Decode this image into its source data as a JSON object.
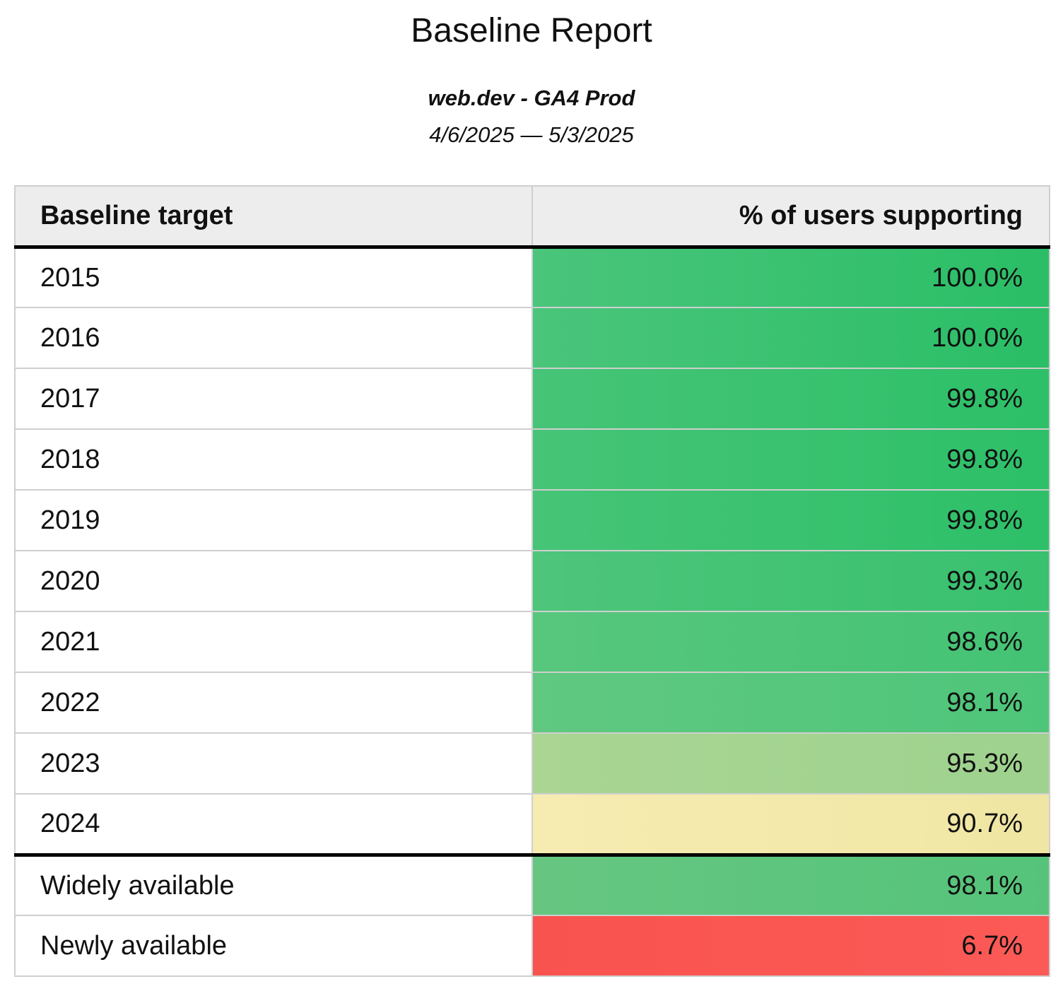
{
  "report": {
    "title": "Baseline Report",
    "subtitle": "web.dev - GA4 Prod",
    "date_range": "4/6/2025 — 5/3/2025"
  },
  "table": {
    "columns": {
      "target": "Baseline target",
      "support": "% of users supporting"
    },
    "header_bg": "#ededed",
    "divider_color": "#cfcfcf",
    "heavy_rule_color": "#000000",
    "rows": [
      {
        "target": "2015",
        "value": "100.0%",
        "color_left": "#4ac57b",
        "color_right": "#2abe66",
        "group_end": false
      },
      {
        "target": "2016",
        "value": "100.0%",
        "color_left": "#4ac57b",
        "color_right": "#2abe66",
        "group_end": false
      },
      {
        "target": "2017",
        "value": "99.8%",
        "color_left": "#46c477",
        "color_right": "#2dc068",
        "group_end": false
      },
      {
        "target": "2018",
        "value": "99.8%",
        "color_left": "#46c477",
        "color_right": "#2dc068",
        "group_end": false
      },
      {
        "target": "2019",
        "value": "99.8%",
        "color_left": "#46c477",
        "color_right": "#2dc068",
        "group_end": false
      },
      {
        "target": "2020",
        "value": "99.3%",
        "color_left": "#4ec57b",
        "color_right": "#38c16e",
        "group_end": false
      },
      {
        "target": "2021",
        "value": "98.6%",
        "color_left": "#57c77d",
        "color_right": "#44c374",
        "group_end": false
      },
      {
        "target": "2022",
        "value": "98.1%",
        "color_left": "#60c881",
        "color_right": "#4ec67a",
        "group_end": false
      },
      {
        "target": "2023",
        "value": "95.3%",
        "color_left": "#aad593",
        "color_right": "#9ed28e",
        "group_end": false
      },
      {
        "target": "2024",
        "value": "90.7%",
        "color_left": "#f6ecb2",
        "color_right": "#f0e6a3",
        "group_end": true
      },
      {
        "target": "Widely available",
        "value": "98.1%",
        "color_left": "#66c681",
        "color_right": "#55c47a",
        "group_end": false
      },
      {
        "target": "Newly available",
        "value": "6.7%",
        "color_left": "#f9534f",
        "color_right": "#fb5a56",
        "group_end": false
      }
    ]
  },
  "chart_data": {
    "type": "table",
    "title": "Baseline Report",
    "subtitle": "web.dev - GA4 Prod",
    "date_range": "4/6/2025 — 5/3/2025",
    "columns": [
      "Baseline target",
      "% of users supporting"
    ],
    "categories": [
      "2015",
      "2016",
      "2017",
      "2018",
      "2019",
      "2020",
      "2021",
      "2022",
      "2023",
      "2024",
      "Widely available",
      "Newly available"
    ],
    "values": [
      100.0,
      100.0,
      99.8,
      99.8,
      99.8,
      99.3,
      98.6,
      98.1,
      95.3,
      90.7,
      98.1,
      6.7
    ],
    "value_unit": "%",
    "color_scale": "red-yellow-green heatmap on value column"
  }
}
